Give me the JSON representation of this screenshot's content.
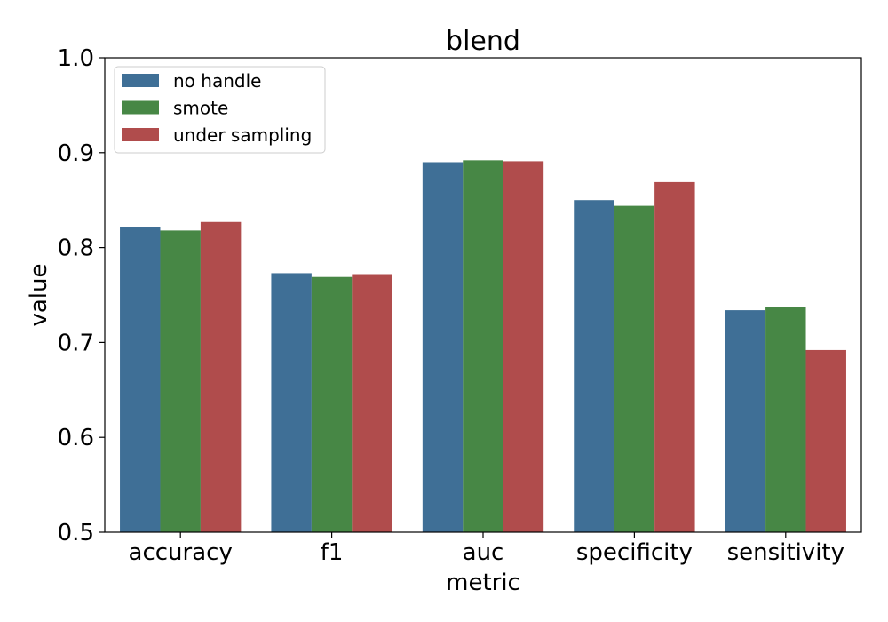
{
  "chart_data": {
    "type": "bar",
    "title": "blend",
    "xlabel": "metric",
    "ylabel": "value",
    "ylim": [
      0.5,
      1.0
    ],
    "yticks": [
      0.5,
      0.6,
      0.7,
      0.8,
      0.9,
      1.0
    ],
    "ytick_labels": [
      "0.5",
      "0.6",
      "0.7",
      "0.8",
      "0.9",
      "1.0"
    ],
    "categories": [
      "accuracy",
      "f1",
      "auc",
      "specificity",
      "sensitivity"
    ],
    "series": [
      {
        "name": "no handle",
        "color": "#3f6f96",
        "values": [
          0.822,
          0.773,
          0.89,
          0.85,
          0.734
        ]
      },
      {
        "name": "smote",
        "color": "#478745",
        "values": [
          0.818,
          0.769,
          0.892,
          0.844,
          0.737
        ]
      },
      {
        "name": "under sampling",
        "color": "#b04c4c",
        "values": [
          0.827,
          0.772,
          0.891,
          0.869,
          0.692
        ]
      }
    ],
    "legend": "top-left",
    "grid": false
  }
}
